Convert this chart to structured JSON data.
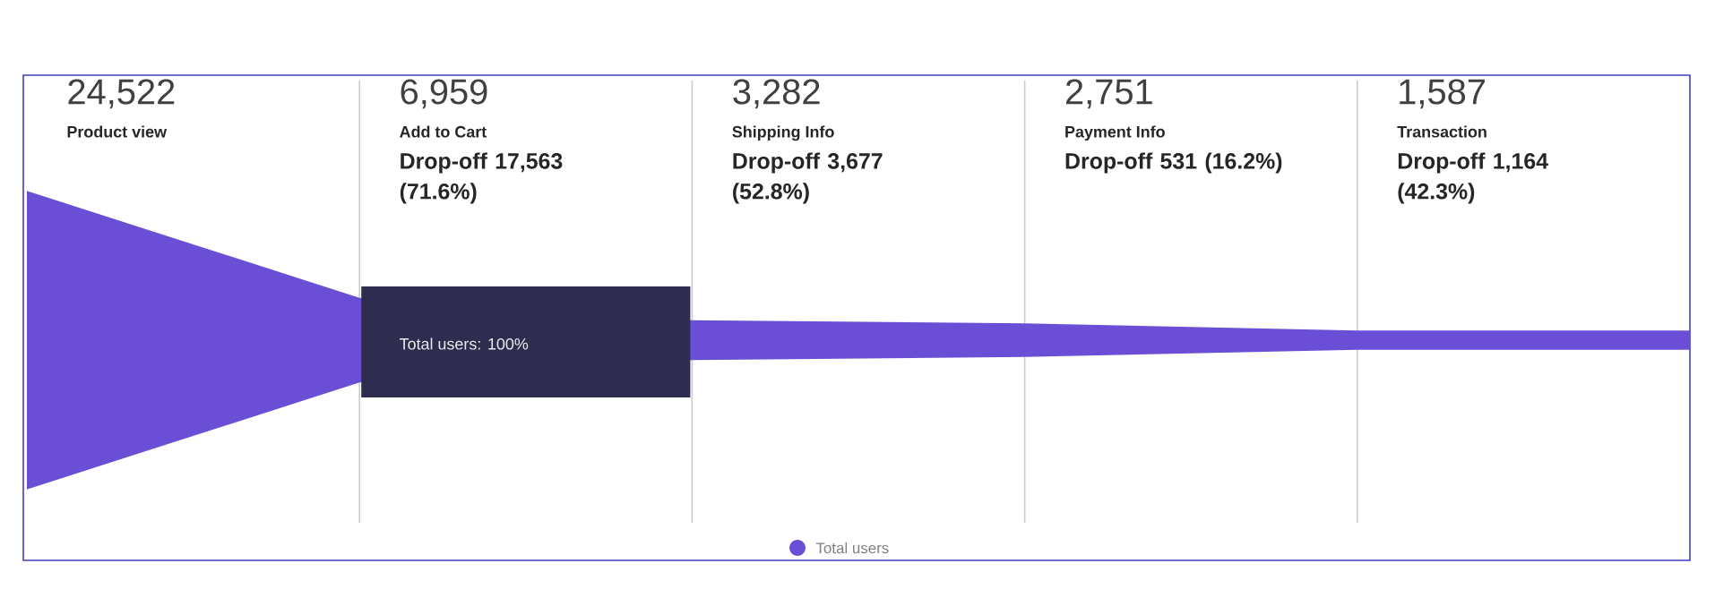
{
  "chart_data": {
    "type": "other",
    "categories": [
      "Product view",
      "Add to Cart",
      "Shipping Info",
      "Payment Info",
      "Transaction"
    ],
    "series": [
      {
        "name": "Total users",
        "color": "#6a4fd6",
        "values": [
          24522,
          6959,
          3282,
          2751,
          1587
        ],
        "value_labels": [
          "24,522",
          "6,959",
          "3,282",
          "2,751",
          "1,587"
        ]
      }
    ],
    "data_labels": true,
    "legend": "bottom",
    "annotations": [
      "Drop-off 17,563 (71.6%)",
      "Drop-off 3,677 (52.8%)",
      "Drop-off 531 (16.2%)",
      "Drop-off 1,164 (42.3%)",
      "Total users: 100%"
    ]
  }
}
